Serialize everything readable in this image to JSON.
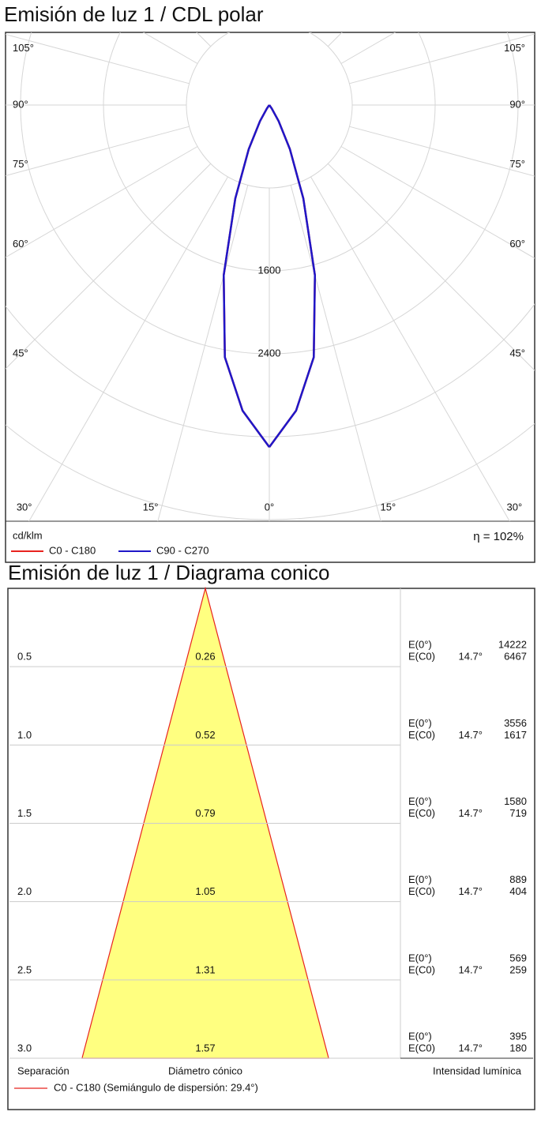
{
  "chart_data": [
    {
      "type": "polar",
      "title": "Emisión de luz 1 / CDL polar",
      "x": [
        0,
        5,
        10,
        15,
        20,
        25,
        30,
        35,
        40,
        45,
        50,
        55,
        60,
        65,
        70,
        75,
        80,
        85,
        90
      ],
      "series": [
        {
          "name": "C0 - C180",
          "color": "#e8231f",
          "values": [
            3300,
            2960,
            2470,
            1700,
            960,
            470,
            180,
            40,
            0,
            0,
            0,
            0,
            0,
            0,
            0,
            0,
            0,
            0,
            0
          ]
        },
        {
          "name": "C90 - C270",
          "color": "#1f17c8",
          "values": [
            3300,
            2960,
            2470,
            1700,
            960,
            470,
            180,
            40,
            0,
            0,
            0,
            0,
            0,
            0,
            0,
            0,
            0,
            0,
            0
          ]
        }
      ],
      "rgrid": [
        800,
        1600,
        2400,
        3200,
        4000,
        4800
      ],
      "rticks": [
        1600,
        2400
      ],
      "thetaticks": [
        {
          "value": 0,
          "label": "0°"
        },
        {
          "value": 15,
          "label": "15°"
        },
        {
          "value": 30,
          "label": "30°"
        },
        {
          "value": 45,
          "label": "45°"
        },
        {
          "value": 60,
          "label": "60°"
        },
        {
          "value": 75,
          "label": "75°"
        },
        {
          "value": 90,
          "label": "90°"
        },
        {
          "value": 105,
          "label": "105°"
        }
      ],
      "unit": "cd/klm",
      "efficiency": "η = 102%"
    },
    {
      "type": "cone",
      "title": "Emisión de luz 1 / Diagrama conico",
      "distances": [
        0.5,
        {
          "value": 1,
          "label": "1.0"
        },
        1.5,
        {
          "value": 2,
          "label": "2.0"
        },
        2.5,
        {
          "value": 3,
          "label": "3.0"
        }
      ],
      "ylim": [
        0,
        3
      ],
      "diameters": [
        0.26,
        0.52,
        0.79,
        1.05,
        1.31,
        1.57
      ],
      "center_label": "E(0°)",
      "edge_label": "E(C0)",
      "edge_angle": {
        "value": 14.7,
        "label": "14.7°"
      },
      "e_center": [
        14222,
        3556,
        1580,
        889,
        569,
        395
      ],
      "e_edge": [
        6467,
        1617,
        719,
        404,
        259,
        180
      ],
      "xlabels": [
        "Separación",
        "Diámetro cónico",
        "Intensidad lumínica"
      ],
      "fill": "#ffff80",
      "series": [
        {
          "name": "C0 - C180 (Semiángulo de dispersión: 29.4°)",
          "color": "#e8231f"
        }
      ]
    }
  ]
}
